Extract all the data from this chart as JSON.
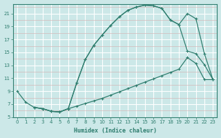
{
  "title": "",
  "xlabel": "Humidex (Indice chaleur)",
  "bg_color": "#cce8e8",
  "line_color": "#2e7d6e",
  "grid_major_color": "#ffffff",
  "grid_minor_color": "#d4b8b8",
  "xlim": [
    -0.5,
    23.5
  ],
  "ylim": [
    5,
    22.5
  ],
  "xticks": [
    0,
    1,
    2,
    3,
    4,
    5,
    6,
    7,
    8,
    9,
    10,
    11,
    12,
    13,
    14,
    15,
    16,
    17,
    18,
    19,
    20,
    21,
    22,
    23
  ],
  "yticks": [
    5,
    7,
    9,
    11,
    13,
    15,
    17,
    19,
    21
  ],
  "curve1_x": [
    0,
    1,
    2,
    3,
    4,
    5,
    6,
    7,
    8,
    9,
    10,
    11,
    12,
    13,
    14,
    15,
    16,
    17,
    18,
    19,
    20,
    21,
    22,
    23
  ],
  "curve1_y": [
    9,
    7.3,
    6.5,
    6.3,
    5.9,
    5.8,
    6.3,
    10.3,
    13.9,
    16.1,
    17.7,
    19.2,
    20.5,
    21.5,
    22.0,
    22.3,
    22.2,
    21.8,
    20.0,
    19.3,
    21.0,
    20.2,
    14.8,
    10.8
  ],
  "curve2_x": [
    2,
    3,
    4,
    5,
    6,
    7,
    8,
    9,
    10,
    11,
    12,
    13,
    14,
    15,
    16,
    17,
    18,
    19,
    20,
    21,
    22,
    23
  ],
  "curve2_y": [
    6.5,
    6.3,
    5.9,
    5.8,
    6.3,
    10.3,
    13.9,
    16.1,
    17.7,
    19.2,
    20.5,
    21.5,
    22.0,
    22.3,
    22.2,
    21.8,
    20.0,
    19.3,
    15.2,
    14.8,
    13.1,
    10.8
  ],
  "curve3_x": [
    2,
    3,
    4,
    5,
    6,
    7,
    8,
    9,
    10,
    11,
    12,
    13,
    14,
    15,
    16,
    17,
    18,
    19,
    20,
    21,
    22,
    23
  ],
  "curve3_y": [
    6.5,
    6.3,
    5.9,
    5.8,
    6.3,
    6.7,
    7.1,
    7.5,
    7.9,
    8.4,
    8.9,
    9.4,
    9.9,
    10.4,
    10.9,
    11.4,
    11.9,
    12.4,
    14.2,
    13.3,
    10.8,
    10.8
  ]
}
